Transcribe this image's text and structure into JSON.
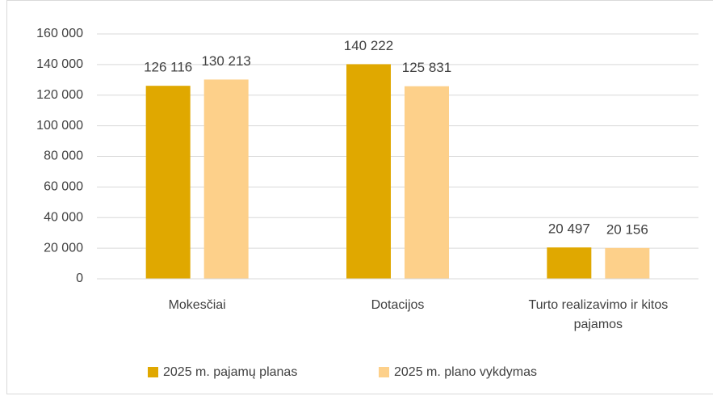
{
  "chart_data": {
    "type": "bar",
    "categories": [
      "Mokesčiai",
      "Dotacijos",
      "Turto realizavimo ir kitos pajamos"
    ],
    "series": [
      {
        "name": "2025 m. pajamų planas",
        "color": "#e0a800",
        "values": [
          126116,
          140222,
          20497
        ],
        "value_labels": [
          "126 116",
          "140 222",
          "20 497"
        ]
      },
      {
        "name": "2025 m. plano vykdymas",
        "color": "#fdd08a",
        "values": [
          130213,
          125831,
          20156
        ],
        "value_labels": [
          "130 213",
          "125 831",
          "20 156"
        ]
      }
    ],
    "ylim": [
      0,
      160000
    ],
    "yticks": [
      0,
      {
        "value": 20000,
        "label": "20 000"
      },
      {
        "value": 40000,
        "label": "40 000"
      },
      {
        "value": 60000,
        "label": "60 000"
      },
      {
        "value": 80000,
        "label": "80 000"
      },
      {
        "value": 100000,
        "label": "100 000"
      },
      {
        "value": 120000,
        "label": "120 000"
      },
      {
        "value": 140000,
        "label": "140 000"
      },
      {
        "value": 160000,
        "label": "160 000"
      }
    ],
    "grid": true,
    "legend": "bottom"
  }
}
